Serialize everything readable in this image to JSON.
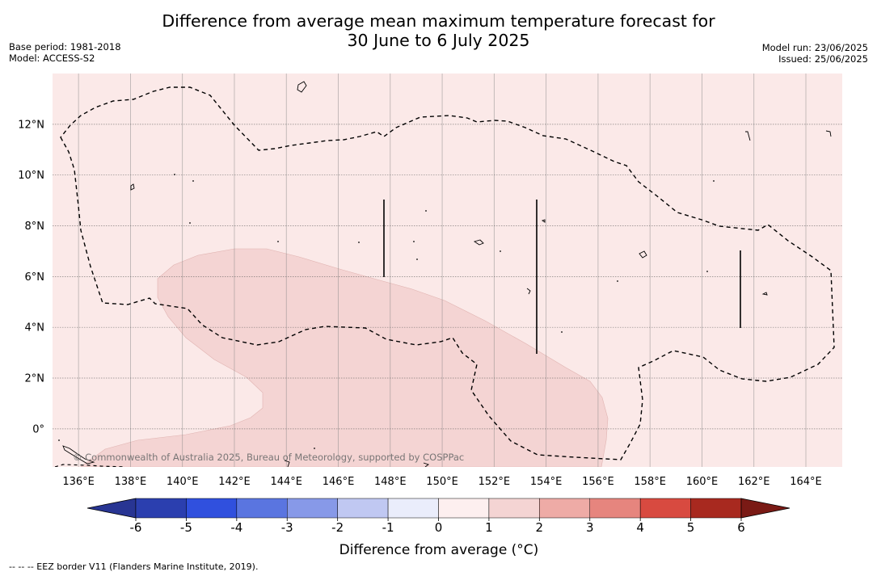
{
  "title": {
    "line1": "Difference from average mean maximum temperature forecast for",
    "line2": "30 June to 6 July 2025"
  },
  "meta_left": {
    "base_period": "Base period: 1981-2018",
    "model": "Model: ACCESS-S2"
  },
  "meta_right": {
    "model_run": "Model run: 23/06/2025",
    "issued": "Issued: 25/06/2025"
  },
  "map": {
    "lon_ticks": [
      "136°E",
      "138°E",
      "140°E",
      "142°E",
      "144°E",
      "146°E",
      "148°E",
      "150°E",
      "152°E",
      "154°E",
      "156°E",
      "158°E",
      "160°E",
      "162°E",
      "164°E"
    ],
    "lat_ticks": [
      "12°N",
      "10°N",
      "8°N",
      "6°N",
      "4°N",
      "2°N",
      "0°"
    ],
    "lon_values": [
      136,
      138,
      140,
      142,
      144,
      146,
      148,
      150,
      152,
      154,
      156,
      158,
      160,
      162,
      164
    ],
    "lat_values": [
      12,
      10,
      8,
      6,
      4,
      2,
      0
    ],
    "extent": {
      "lon_min": 135.0,
      "lon_max": 165.4,
      "lat_min": -1.5,
      "lat_max": 14.0
    },
    "background_color": "#fbe9e8",
    "anomaly_region_color": "#f4d4d3",
    "copyright": "© Commonwealth of Australia 2025, Bureau of Meteorology, supported by COSPPac"
  },
  "colorbar": {
    "label": "Difference from average (°C)",
    "ticks": [
      "-6",
      "-5",
      "-4",
      "-3",
      "-2",
      "-1",
      "0",
      "1",
      "2",
      "3",
      "4",
      "5",
      "6"
    ],
    "colors": [
      "#283593",
      "#2b3faf",
      "#3050de",
      "#5a75e0",
      "#8799e8",
      "#c0c8f2",
      "#eaedfb",
      "#fdefef",
      "#f4d4d3",
      "#eeaba6",
      "#e6857e",
      "#d84a40",
      "#a8291f",
      "#7a1a15"
    ]
  },
  "footnote": "-- -- -- EEZ border V11 (Flanders Marine Institute, 2019)."
}
